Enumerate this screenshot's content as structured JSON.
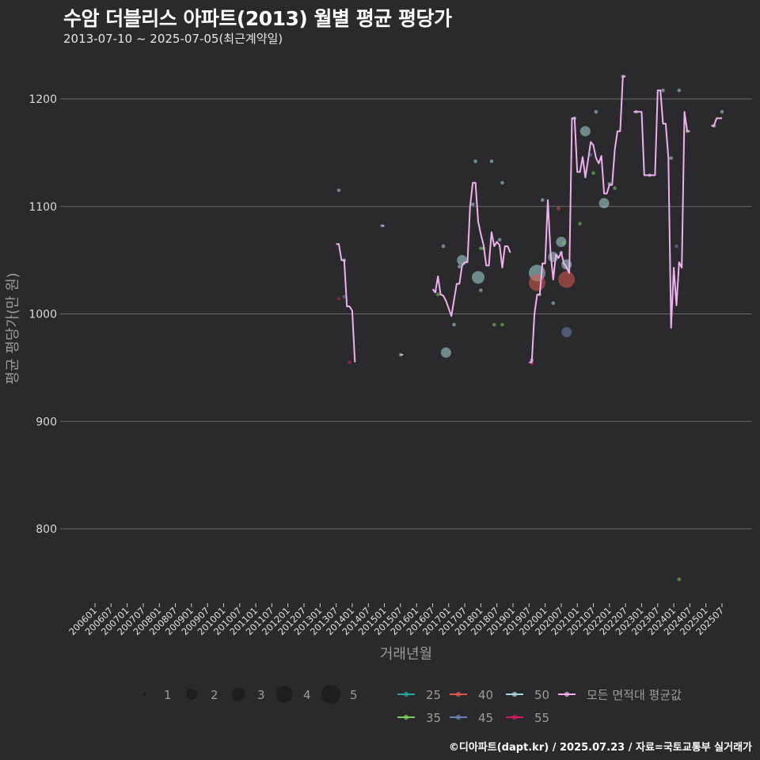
{
  "header": {
    "title": "수암 더블리스 아파트(2013) 월별 평균 평당가",
    "subtitle": "2013-07-10 ~ 2025-07-05(최근계약일)"
  },
  "footer": {
    "credit": "©디아파트(dapt.kr) / 2025.07.23 / 자료=국토교통부 실거래가"
  },
  "colors": {
    "background": "#2a2a2c",
    "grid": "#6a6a6a",
    "avg_line": "#f0b0f0",
    "area_25": "#2aa198",
    "area_35": "#7ccd5a",
    "area_40": "#d9574f",
    "area_45": "#6b7fb0",
    "area_50": "#a8d8d8",
    "area_55": "#d81b60"
  },
  "chart_data": {
    "type": "scatter+line",
    "title": "수암 더블리스 아파트(2013) 월별 평균 평당가",
    "subtitle": "2013-07-10 ~ 2025-07-05(최근계약일)",
    "xlabel": "거래년월",
    "ylabel": "평균 평당가(만 원)",
    "ylim": [
      735,
      1225
    ],
    "yticks": [
      800,
      900,
      1000,
      1100,
      1200
    ],
    "xticks": [
      "200601",
      "200607",
      "200701",
      "200707",
      "200801",
      "200807",
      "200901",
      "200907",
      "201001",
      "201007",
      "201101",
      "201107",
      "201201",
      "201207",
      "201301",
      "201307",
      "201401",
      "201407",
      "201501",
      "201507",
      "201601",
      "201607",
      "201701",
      "201707",
      "201801",
      "201807",
      "201901",
      "201907",
      "202001",
      "202007",
      "202101",
      "202107",
      "202201",
      "202207",
      "202301",
      "202307",
      "202401",
      "202407",
      "202501",
      "202507"
    ],
    "grid": "horizontal",
    "legend": {
      "size_title": "",
      "sizes": [
        1,
        2,
        3,
        4,
        5
      ],
      "areas": [
        "25",
        "40",
        "50",
        "모든 면적대 평균값",
        "35",
        "45",
        "55"
      ]
    },
    "avg_line": [
      [
        "2013-07",
        1065
      ],
      [
        "2013-08",
        1065
      ],
      [
        "2013-09",
        1050
      ],
      [
        "2013-10",
        1050
      ],
      [
        "2013-11",
        1007
      ],
      [
        "2013-12",
        1007
      ],
      [
        "2014-01",
        1003
      ],
      [
        "2014-02",
        955
      ],
      [
        "2014-12",
        1082
      ],
      [
        "2015-01",
        1082
      ],
      [
        "2015-07",
        962
      ],
      [
        "2015-08",
        962
      ],
      [
        "2016-07",
        1023
      ],
      [
        "2016-08",
        1020
      ],
      [
        "2016-09",
        1035
      ],
      [
        "2016-10",
        1018
      ],
      [
        "2016-11",
        1017
      ],
      [
        "2016-12",
        1012
      ],
      [
        "2017-01",
        1005
      ],
      [
        "2017-02",
        998
      ],
      [
        "2017-03",
        1013
      ],
      [
        "2017-04",
        1028
      ],
      [
        "2017-05",
        1028
      ],
      [
        "2017-06",
        1045
      ],
      [
        "2017-07",
        1048
      ],
      [
        "2017-08",
        1048
      ],
      [
        "2017-09",
        1100
      ],
      [
        "2017-10",
        1122
      ],
      [
        "2017-11",
        1122
      ],
      [
        "2017-12",
        1086
      ],
      [
        "2018-01",
        1074
      ],
      [
        "2018-02",
        1064
      ],
      [
        "2018-03",
        1045
      ],
      [
        "2018-04",
        1045
      ],
      [
        "2018-05",
        1076
      ],
      [
        "2018-06",
        1063
      ],
      [
        "2018-07",
        1067
      ],
      [
        "2018-08",
        1064
      ],
      [
        "2018-09",
        1043
      ],
      [
        "2018-10",
        1063
      ],
      [
        "2018-11",
        1063
      ],
      [
        "2018-12",
        1057
      ],
      [
        "2019-07",
        955
      ],
      [
        "2019-08",
        955
      ],
      [
        "2019-09",
        1000
      ],
      [
        "2019-10",
        1018
      ],
      [
        "2019-11",
        1018
      ],
      [
        "2019-12",
        1047
      ],
      [
        "2020-01",
        1047
      ],
      [
        "2020-02",
        1106
      ],
      [
        "2020-03",
        1057
      ],
      [
        "2020-04",
        1032
      ],
      [
        "2020-05",
        1055
      ],
      [
        "2020-06",
        1052
      ],
      [
        "2020-07",
        1057
      ],
      [
        "2020-08",
        1047
      ],
      [
        "2020-09",
        1043
      ],
      [
        "2020-10",
        1038
      ],
      [
        "2020-11",
        1182
      ],
      [
        "2020-12",
        1182
      ],
      [
        "2021-01",
        1132
      ],
      [
        "2021-02",
        1132
      ],
      [
        "2021-03",
        1146
      ],
      [
        "2021-04",
        1127
      ],
      [
        "2021-05",
        1143
      ],
      [
        "2021-06",
        1160
      ],
      [
        "2021-07",
        1157
      ],
      [
        "2021-08",
        1145
      ],
      [
        "2021-09",
        1140
      ],
      [
        "2021-10",
        1147
      ],
      [
        "2021-11",
        1112
      ],
      [
        "2021-12",
        1112
      ],
      [
        "2022-01",
        1120
      ],
      [
        "2022-02",
        1120
      ],
      [
        "2022-03",
        1153
      ],
      [
        "2022-04",
        1170
      ],
      [
        "2022-05",
        1170
      ],
      [
        "2022-06",
        1221
      ],
      [
        "2022-07",
        1221
      ],
      [
        "2022-10",
        1188
      ],
      [
        "2022-11",
        1188
      ],
      [
        "2022-12",
        1188
      ],
      [
        "2023-01",
        1188
      ],
      [
        "2023-02",
        1129
      ],
      [
        "2023-03",
        1129
      ],
      [
        "2023-04",
        1129
      ],
      [
        "2023-05",
        1129
      ],
      [
        "2023-06",
        1129
      ],
      [
        "2023-07",
        1208
      ],
      [
        "2023-08",
        1208
      ],
      [
        "2023-09",
        1177
      ],
      [
        "2023-10",
        1177
      ],
      [
        "2023-11",
        1145
      ],
      [
        "2023-12",
        987
      ],
      [
        "2024-01",
        1043
      ],
      [
        "2024-02",
        1008
      ],
      [
        "2024-03",
        1048
      ],
      [
        "2024-04",
        1043
      ],
      [
        "2024-05",
        1188
      ],
      [
        "2024-06",
        1170
      ],
      [
        "2024-07",
        1170
      ],
      [
        "2025-03",
        1175
      ],
      [
        "2025-04",
        1175
      ],
      [
        "2025-05",
        1182
      ],
      [
        "2025-06",
        1182
      ],
      [
        "2025-07",
        1182
      ]
    ],
    "points": [
      {
        "x": "2013-08",
        "y": 1115,
        "area": "50",
        "n": 1
      },
      {
        "x": "2013-08",
        "y": 1014,
        "area": "55",
        "n": 1
      },
      {
        "x": "2013-10",
        "y": 1050,
        "area": "50",
        "n": 1
      },
      {
        "x": "2013-10",
        "y": 1016,
        "area": "45",
        "n": 1
      },
      {
        "x": "2013-12",
        "y": 955,
        "area": "55",
        "n": 1
      },
      {
        "x": "2014-12",
        "y": 1082,
        "area": "45",
        "n": 1
      },
      {
        "x": "2015-07",
        "y": 962,
        "area": "35",
        "n": 1
      },
      {
        "x": "2016-08",
        "y": 1021,
        "area": "45",
        "n": 1
      },
      {
        "x": "2016-09",
        "y": 1018,
        "area": "35",
        "n": 1
      },
      {
        "x": "2016-11",
        "y": 1063,
        "area": "50",
        "n": 1
      },
      {
        "x": "2016-12",
        "y": 964,
        "area": "50",
        "n": 3
      },
      {
        "x": "2017-03",
        "y": 990,
        "area": "50",
        "n": 1
      },
      {
        "x": "2017-05",
        "y": 1044,
        "area": "50",
        "n": 1
      },
      {
        "x": "2017-06",
        "y": 1050,
        "area": "50",
        "n": 3
      },
      {
        "x": "2017-10",
        "y": 1102,
        "area": "50",
        "n": 1
      },
      {
        "x": "2017-11",
        "y": 1142,
        "area": "50",
        "n": 1
      },
      {
        "x": "2017-12",
        "y": 1034,
        "area": "50",
        "n": 4
      },
      {
        "x": "2018-01",
        "y": 1022,
        "area": "50",
        "n": 1
      },
      {
        "x": "2018-01",
        "y": 1061,
        "area": "35",
        "n": 1
      },
      {
        "x": "2018-02",
        "y": 1061,
        "area": "35",
        "n": 1
      },
      {
        "x": "2018-05",
        "y": 1142,
        "area": "50",
        "n": 1
      },
      {
        "x": "2018-06",
        "y": 990,
        "area": "35",
        "n": 1
      },
      {
        "x": "2018-08",
        "y": 1069,
        "area": "50",
        "n": 1
      },
      {
        "x": "2018-09",
        "y": 990,
        "area": "35",
        "n": 1
      },
      {
        "x": "2018-09",
        "y": 1122,
        "area": "50",
        "n": 1
      },
      {
        "x": "2019-08",
        "y": 957,
        "area": "50",
        "n": 1
      },
      {
        "x": "2019-08",
        "y": 954,
        "area": "55",
        "n": 1
      },
      {
        "x": "2019-10",
        "y": 1038,
        "area": "50",
        "n": 5
      },
      {
        "x": "2019-10",
        "y": 1029,
        "area": "40",
        "n": 5
      },
      {
        "x": "2019-11",
        "y": 1018,
        "area": "35",
        "n": 1
      },
      {
        "x": "2019-12",
        "y": 1106,
        "area": "50",
        "n": 1
      },
      {
        "x": "2020-04",
        "y": 1053,
        "area": "50",
        "n": 3
      },
      {
        "x": "2020-04",
        "y": 1010,
        "area": "50",
        "n": 1
      },
      {
        "x": "2020-06",
        "y": 1098,
        "area": "40",
        "n": 1
      },
      {
        "x": "2020-07",
        "y": 1067,
        "area": "50",
        "n": 3
      },
      {
        "x": "2020-07",
        "y": 1057,
        "area": "50",
        "n": 1
      },
      {
        "x": "2020-08",
        "y": 1066,
        "area": "35",
        "n": 1
      },
      {
        "x": "2020-09",
        "y": 1032,
        "area": "40",
        "n": 5
      },
      {
        "x": "2020-09",
        "y": 1046,
        "area": "50",
        "n": 3
      },
      {
        "x": "2020-09",
        "y": 983,
        "area": "45",
        "n": 3
      },
      {
        "x": "2020-12",
        "y": 1182,
        "area": "50",
        "n": 1
      },
      {
        "x": "2021-02",
        "y": 1084,
        "area": "35",
        "n": 1
      },
      {
        "x": "2021-04",
        "y": 1170,
        "area": "50",
        "n": 3
      },
      {
        "x": "2021-06",
        "y": 1148,
        "area": "45",
        "n": 1
      },
      {
        "x": "2021-07",
        "y": 1131,
        "area": "35",
        "n": 1
      },
      {
        "x": "2021-08",
        "y": 1188,
        "area": "50",
        "n": 1
      },
      {
        "x": "2021-11",
        "y": 1103,
        "area": "50",
        "n": 3
      },
      {
        "x": "2022-01",
        "y": 1121,
        "area": "50",
        "n": 1
      },
      {
        "x": "2022-03",
        "y": 1117,
        "area": "35",
        "n": 1
      },
      {
        "x": "2022-06",
        "y": 1221,
        "area": "50",
        "n": 1
      },
      {
        "x": "2022-11",
        "y": 1188,
        "area": "50",
        "n": 1
      },
      {
        "x": "2023-04",
        "y": 1129,
        "area": "50",
        "n": 1
      },
      {
        "x": "2023-09",
        "y": 1208,
        "area": "50",
        "n": 1
      },
      {
        "x": "2023-12",
        "y": 1145,
        "area": "50",
        "n": 1
      },
      {
        "x": "2024-02",
        "y": 1063,
        "area": "45",
        "n": 1
      },
      {
        "x": "2024-03",
        "y": 1208,
        "area": "50",
        "n": 1
      },
      {
        "x": "2024-03",
        "y": 753,
        "area": "35",
        "n": 1
      },
      {
        "x": "2024-06",
        "y": 1170,
        "area": "35",
        "n": 1
      },
      {
        "x": "2025-04",
        "y": 1175,
        "area": "50",
        "n": 1
      },
      {
        "x": "2025-07",
        "y": 1188,
        "area": "50",
        "n": 1
      }
    ]
  },
  "legend": {
    "sizes": [
      {
        "label": "1",
        "r": 2
      },
      {
        "label": "2",
        "r": 7
      },
      {
        "label": "3",
        "r": 8.5
      },
      {
        "label": "4",
        "r": 10.5
      },
      {
        "label": "5",
        "r": 12
      }
    ],
    "areas": [
      {
        "label": "25",
        "color": "#2aa198",
        "row": 0,
        "col": 0
      },
      {
        "label": "40",
        "color": "#d9574f",
        "row": 0,
        "col": 1
      },
      {
        "label": "50",
        "color": "#a8d8d8",
        "row": 0,
        "col": 2
      },
      {
        "label": "모든 면적대 평균값",
        "color": "#f0b0f0",
        "row": 0,
        "col": 3
      },
      {
        "label": "35",
        "color": "#7ccd5a",
        "row": 1,
        "col": 0
      },
      {
        "label": "45",
        "color": "#6b7fb0",
        "row": 1,
        "col": 1
      },
      {
        "label": "55",
        "color": "#d81b60",
        "row": 1,
        "col": 2
      }
    ]
  }
}
